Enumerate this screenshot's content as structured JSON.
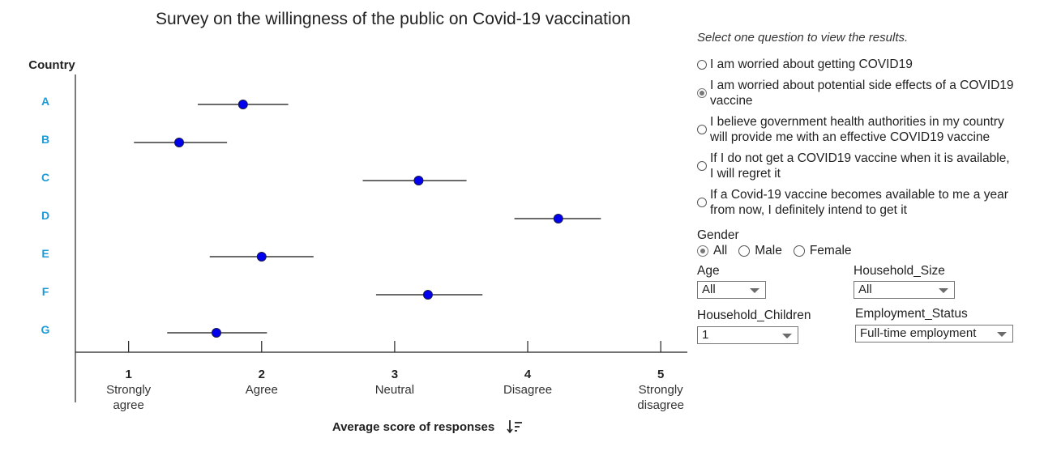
{
  "chart_data": {
    "type": "scatter",
    "title": "Survey on the willingness of the public on Covid-19 vaccination",
    "ylabel": "Country",
    "xlabel": "Average score of responses",
    "xlabel_icon": "sort-descending-icon",
    "xlim": [
      0.6,
      5.2
    ],
    "x_ticks": [
      {
        "value": 1,
        "number": "1",
        "label": [
          "Strongly",
          "agree"
        ]
      },
      {
        "value": 2,
        "number": "2",
        "label": [
          "Agree"
        ]
      },
      {
        "value": 3,
        "number": "3",
        "label": [
          "Neutral"
        ]
      },
      {
        "value": 4,
        "number": "4",
        "label": [
          "Disagree"
        ]
      },
      {
        "value": 5,
        "number": "5",
        "label": [
          "Strongly",
          "disagree"
        ]
      }
    ],
    "categories": [
      "A",
      "B",
      "C",
      "D",
      "E",
      "F",
      "G"
    ],
    "points": [
      {
        "category": "A",
        "mean": 1.86,
        "low": 1.52,
        "high": 2.2
      },
      {
        "category": "B",
        "mean": 1.38,
        "low": 1.04,
        "high": 1.74
      },
      {
        "category": "C",
        "mean": 3.18,
        "low": 2.76,
        "high": 3.54
      },
      {
        "category": "D",
        "mean": 4.23,
        "low": 3.9,
        "high": 4.55
      },
      {
        "category": "E",
        "mean": 2.0,
        "low": 1.61,
        "high": 2.39
      },
      {
        "category": "F",
        "mean": 3.25,
        "low": 2.86,
        "high": 3.66
      },
      {
        "category": "G",
        "mean": 1.66,
        "low": 1.29,
        "high": 2.04
      }
    ],
    "grid": false,
    "colors": {
      "point": "#0000ee",
      "category_label": "#1e9bd7",
      "axis": "#222222"
    }
  },
  "panel": {
    "prompt": "Select one question to view the results.",
    "questions": [
      {
        "lines": [
          "I am worried about getting COVID19"
        ],
        "checked": false
      },
      {
        "lines": [
          "I am worried about potential side effects of a COVID19",
          "vaccine"
        ],
        "checked": true
      },
      {
        "lines": [
          "I believe government health authorities in my country",
          "will provide me with an effective COVID19 vaccine"
        ],
        "checked": false
      },
      {
        "lines": [
          "If I do not get a COVID19 vaccine when it is available,",
          "I will regret it"
        ],
        "checked": false
      },
      {
        "lines": [
          "If a Covid-19 vaccine becomes available to me a year",
          "from now, I definitely intend to get it"
        ],
        "checked": false
      }
    ],
    "gender": {
      "label": "Gender",
      "options": [
        "All",
        "Male",
        "Female"
      ],
      "selected": "All"
    },
    "age": {
      "label": "Age",
      "value": "All"
    },
    "household_size": {
      "label": "Household_Size",
      "value": "All"
    },
    "household_children": {
      "label": "Household_Children",
      "value": "1"
    },
    "employment_status": {
      "label": "Employment_Status",
      "value": "Full-time employment"
    }
  }
}
